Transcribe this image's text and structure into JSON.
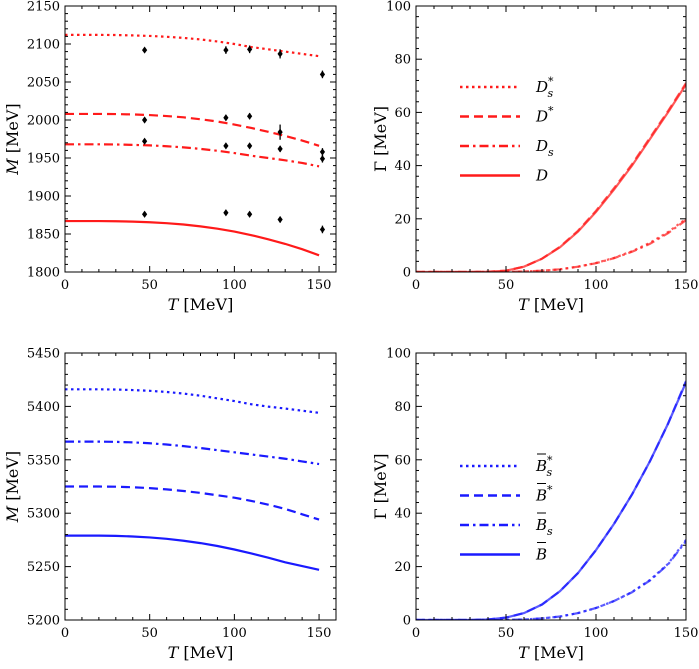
{
  "chart_data": [
    {
      "type": "line",
      "panel": "top-left",
      "xlabel_var": "T",
      "xlabel_unit": "[MeV]",
      "ylabel_var": "M",
      "ylabel_unit": "[MeV]",
      "xlim": [
        0,
        160
      ],
      "ylim": [
        1800,
        2150
      ],
      "xticks": [
        0,
        50,
        100,
        150
      ],
      "yticks": [
        1800,
        1850,
        1900,
        1950,
        2000,
        2050,
        2100,
        2150
      ],
      "color": "#ff1a1a",
      "series": [
        {
          "name": "D_s^*",
          "dash": "dot",
          "x": [
            0,
            10,
            20,
            30,
            40,
            50,
            60,
            70,
            80,
            90,
            100,
            110,
            120,
            130,
            140,
            150
          ],
          "y": [
            2112,
            2112,
            2112,
            2111.8,
            2111.3,
            2110.6,
            2109.5,
            2108,
            2106,
            2103.3,
            2100,
            2096,
            2093,
            2090,
            2087,
            2084
          ]
        },
        {
          "name": "D^*",
          "dash": "dash",
          "x": [
            0,
            10,
            20,
            30,
            40,
            50,
            60,
            70,
            80,
            90,
            100,
            110,
            120,
            130,
            140,
            150
          ],
          "y": [
            2008,
            2008,
            2008,
            2007.8,
            2007.3,
            2006.5,
            2005.2,
            2003.5,
            2001,
            1998,
            1994,
            1989.5,
            1984.5,
            1979,
            1973,
            1966
          ]
        },
        {
          "name": "D_s",
          "dash": "dashdot",
          "x": [
            0,
            10,
            20,
            30,
            40,
            50,
            60,
            70,
            80,
            90,
            100,
            110,
            120,
            130,
            140,
            150
          ],
          "y": [
            1968,
            1968,
            1968,
            1967.8,
            1967.3,
            1966.6,
            1965.5,
            1964,
            1962,
            1959.5,
            1956.5,
            1953,
            1950,
            1947,
            1943.5,
            1939
          ]
        },
        {
          "name": "D",
          "dash": "solid",
          "x": [
            0,
            10,
            20,
            30,
            40,
            50,
            60,
            70,
            80,
            90,
            100,
            110,
            120,
            130,
            140,
            150
          ],
          "y": [
            1867,
            1867,
            1867,
            1866.8,
            1866.3,
            1865.5,
            1864.2,
            1862.5,
            1860,
            1857,
            1853.2,
            1848.5,
            1843,
            1837,
            1830,
            1822
          ]
        }
      ],
      "points": [
        {
          "x": 47,
          "y": 2092,
          "err": 3
        },
        {
          "x": 47,
          "y": 2000,
          "err": 3
        },
        {
          "x": 47,
          "y": 1972,
          "err": 3
        },
        {
          "x": 47,
          "y": 1876,
          "err": 3
        },
        {
          "x": 95,
          "y": 2092,
          "err": 5
        },
        {
          "x": 95,
          "y": 2003,
          "err": 3
        },
        {
          "x": 95,
          "y": 1966,
          "err": 3
        },
        {
          "x": 95,
          "y": 1878,
          "err": 3
        },
        {
          "x": 109,
          "y": 2093,
          "err": 5
        },
        {
          "x": 109,
          "y": 2005,
          "err": 4
        },
        {
          "x": 109,
          "y": 1966,
          "err": 3
        },
        {
          "x": 109,
          "y": 1876,
          "err": 3
        },
        {
          "x": 127,
          "y": 2087,
          "err": 6
        },
        {
          "x": 127,
          "y": 1984,
          "err": 10
        },
        {
          "x": 127,
          "y": 1962,
          "err": 4
        },
        {
          "x": 127,
          "y": 1869,
          "err": 4
        },
        {
          "x": 152,
          "y": 2060,
          "err": 5
        },
        {
          "x": 152,
          "y": 1958,
          "err": 5
        },
        {
          "x": 152,
          "y": 1949,
          "err": 5
        },
        {
          "x": 152,
          "y": 1856,
          "err": 5
        }
      ]
    },
    {
      "type": "line",
      "panel": "top-right",
      "xlabel_var": "T",
      "xlabel_unit": "[MeV]",
      "ylabel_var": "Γ",
      "ylabel_unit": "[MeV]",
      "xlim": [
        0,
        150
      ],
      "ylim": [
        0,
        100
      ],
      "xticks": [
        0,
        50,
        100,
        150
      ],
      "yticks": [
        0,
        20,
        40,
        60,
        80,
        100
      ],
      "color": "#ff1a1a",
      "legend_placement": "center-left",
      "series": [
        {
          "name": "D_s^*",
          "dash": "dot",
          "x": [
            0,
            40,
            50,
            60,
            70,
            80,
            90,
            100,
            110,
            120,
            130,
            140,
            150
          ],
          "y": [
            0,
            0,
            0.05,
            0.2,
            0.5,
            1.0,
            2.0,
            3.4,
            5.3,
            7.8,
            11.0,
            15.0,
            20.0
          ]
        },
        {
          "name": "D^*",
          "dash": "dash",
          "x": [
            0,
            30,
            40,
            50,
            60,
            70,
            80,
            90,
            100,
            110,
            120,
            130,
            140,
            150
          ],
          "y": [
            0,
            0,
            0.1,
            0.5,
            2.0,
            5.0,
            9.5,
            15.5,
            23.0,
            31.5,
            40.5,
            50.5,
            60.5,
            71.0
          ]
        },
        {
          "name": "D_s",
          "dash": "dashdot",
          "x": [
            0,
            40,
            50,
            60,
            70,
            80,
            90,
            100,
            110,
            120,
            130,
            140,
            150
          ],
          "y": [
            0,
            0,
            0.05,
            0.2,
            0.5,
            1.0,
            2.0,
            3.3,
            5.2,
            7.6,
            10.6,
            14.6,
            19.5
          ]
        },
        {
          "name": "D",
          "dash": "solid",
          "x": [
            0,
            30,
            40,
            50,
            60,
            70,
            80,
            90,
            100,
            110,
            120,
            130,
            140,
            150
          ],
          "y": [
            0,
            0,
            0.1,
            0.5,
            2.0,
            5.0,
            9.3,
            15.2,
            22.6,
            31.0,
            40.0,
            50.0,
            60.0,
            70.5
          ]
        }
      ]
    },
    {
      "type": "line",
      "panel": "bottom-left",
      "xlabel_var": "T",
      "xlabel_unit": "[MeV]",
      "ylabel_var": "M",
      "ylabel_unit": "[MeV]",
      "xlim": [
        0,
        160
      ],
      "ylim": [
        5200,
        5450
      ],
      "xticks": [
        0,
        50,
        100,
        150
      ],
      "yticks": [
        5200,
        5250,
        5300,
        5350,
        5400,
        5450
      ],
      "color": "#1a1aff",
      "series": [
        {
          "name": "B_s^*",
          "dash": "dot",
          "x": [
            0,
            10,
            20,
            30,
            40,
            50,
            60,
            70,
            80,
            90,
            100,
            110,
            120,
            130,
            140,
            150
          ],
          "y": [
            5416,
            5416,
            5416,
            5415.8,
            5415.3,
            5414.6,
            5413.5,
            5412,
            5410,
            5407.5,
            5405,
            5402,
            5399.8,
            5398,
            5396,
            5394
          ]
        },
        {
          "name": "B_s",
          "dash": "dashdot",
          "x": [
            0,
            10,
            20,
            30,
            40,
            50,
            60,
            70,
            80,
            90,
            100,
            110,
            120,
            130,
            140,
            150
          ],
          "y": [
            5367,
            5367,
            5367,
            5366.8,
            5366.3,
            5365.5,
            5364.3,
            5362.8,
            5361,
            5359,
            5357,
            5355,
            5353,
            5351,
            5348.5,
            5346
          ]
        },
        {
          "name": "B^*",
          "dash": "dash",
          "x": [
            0,
            10,
            20,
            30,
            40,
            50,
            60,
            70,
            80,
            90,
            100,
            110,
            120,
            130,
            140,
            150
          ],
          "y": [
            5325,
            5325,
            5325,
            5324.8,
            5324.3,
            5323.5,
            5322.3,
            5320.8,
            5319,
            5316.8,
            5314.5,
            5311.5,
            5308,
            5304,
            5299,
            5294
          ]
        },
        {
          "name": "B",
          "dash": "solid",
          "x": [
            0,
            10,
            20,
            30,
            40,
            50,
            60,
            70,
            80,
            90,
            100,
            110,
            120,
            130,
            140,
            150
          ],
          "y": [
            5279,
            5279,
            5279,
            5278.8,
            5278.2,
            5277.3,
            5276,
            5274.2,
            5272,
            5269.3,
            5266,
            5262.3,
            5258.3,
            5254,
            5250.5,
            5247
          ]
        }
      ]
    },
    {
      "type": "line",
      "panel": "bottom-right",
      "xlabel_var": "T",
      "xlabel_unit": "[MeV]",
      "ylabel_var": "Γ",
      "ylabel_unit": "[MeV]",
      "xlim": [
        0,
        150
      ],
      "ylim": [
        0,
        100
      ],
      "xticks": [
        0,
        50,
        100,
        150
      ],
      "yticks": [
        0,
        20,
        40,
        60,
        80,
        100
      ],
      "color": "#1a1aff",
      "legend_placement": "center-left",
      "series": [
        {
          "name": "B_s^*",
          "dash": "dot",
          "x": [
            0,
            40,
            50,
            60,
            70,
            80,
            90,
            100,
            110,
            120,
            130,
            140,
            150
          ],
          "y": [
            0,
            0,
            0.05,
            0.2,
            0.6,
            1.3,
            2.6,
            4.5,
            7.1,
            10.5,
            15.0,
            21.0,
            30.0
          ]
        },
        {
          "name": "B^*",
          "dash": "dash",
          "x": [
            0,
            30,
            40,
            50,
            60,
            70,
            80,
            90,
            100,
            110,
            120,
            130,
            140,
            150
          ],
          "y": [
            0,
            0,
            0.2,
            0.9,
            2.6,
            5.8,
            10.8,
            17.6,
            26.2,
            36.0,
            47.0,
            59.5,
            73.5,
            89.5
          ]
        },
        {
          "name": "B_s",
          "dash": "dashdot",
          "x": [
            0,
            40,
            50,
            60,
            70,
            80,
            90,
            100,
            110,
            120,
            130,
            140,
            150
          ],
          "y": [
            0,
            0,
            0.05,
            0.2,
            0.6,
            1.3,
            2.6,
            4.5,
            7.1,
            10.4,
            14.8,
            20.8,
            29.5
          ]
        },
        {
          "name": "B",
          "dash": "solid",
          "x": [
            0,
            30,
            40,
            50,
            60,
            70,
            80,
            90,
            100,
            110,
            120,
            130,
            140,
            150
          ],
          "y": [
            0,
            0,
            0.2,
            0.9,
            2.6,
            5.8,
            10.8,
            17.6,
            26.2,
            36.0,
            47.0,
            59.5,
            73.5,
            89.0
          ]
        }
      ]
    }
  ],
  "legends": {
    "top": [
      {
        "base": "D",
        "bar": false,
        "sub": "s",
        "sup": "*",
        "dash": "dot"
      },
      {
        "base": "D",
        "bar": false,
        "sub": "",
        "sup": "*",
        "dash": "dash"
      },
      {
        "base": "D",
        "bar": false,
        "sub": "s",
        "sup": "",
        "dash": "dashdot"
      },
      {
        "base": "D",
        "bar": false,
        "sub": "",
        "sup": "",
        "dash": "solid"
      }
    ],
    "bottom": [
      {
        "base": "B",
        "bar": true,
        "sub": "s",
        "sup": "*",
        "dash": "dot"
      },
      {
        "base": "B",
        "bar": true,
        "sub": "",
        "sup": "*",
        "dash": "dash"
      },
      {
        "base": "B",
        "bar": true,
        "sub": "s",
        "sup": "",
        "dash": "dashdot"
      },
      {
        "base": "B",
        "bar": true,
        "sub": "",
        "sup": "",
        "dash": "solid"
      }
    ]
  }
}
